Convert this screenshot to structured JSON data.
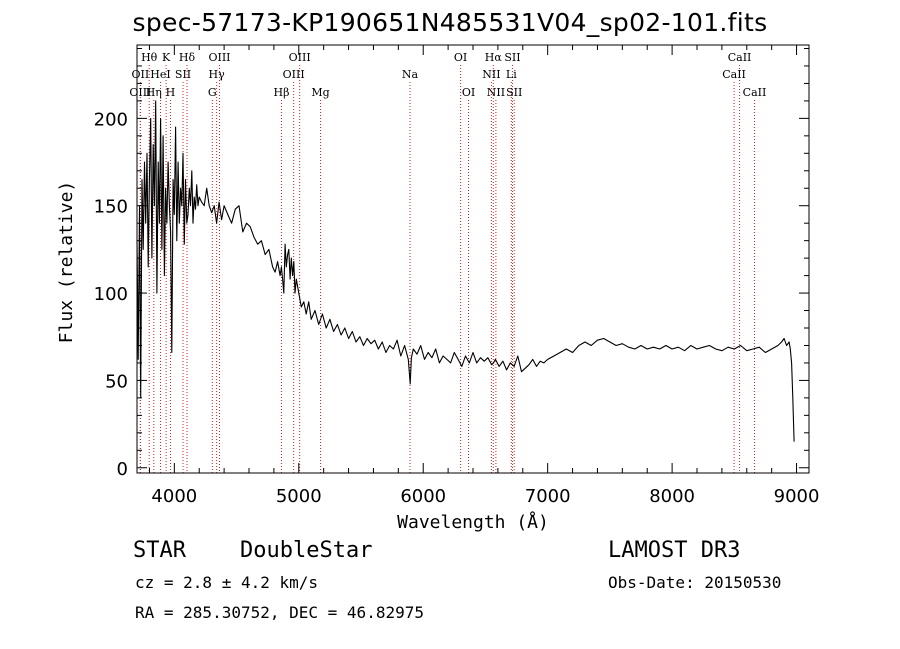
{
  "chart_data": {
    "type": "line",
    "title": "spec-57173-KP190651N485531V04_sp02-101.fits",
    "xlabel": "Wavelength (Å)",
    "ylabel": "Flux (relative)",
    "xlim": [
      3700,
      9100
    ],
    "ylim": [
      -3,
      242
    ],
    "xticks": [
      4000,
      5000,
      6000,
      7000,
      8000,
      9000
    ],
    "yticks": [
      0,
      50,
      100,
      150,
      200
    ],
    "series": [
      {
        "name": "spectrum",
        "x": [
          3700,
          3710,
          3720,
          3730,
          3740,
          3750,
          3760,
          3770,
          3780,
          3790,
          3800,
          3810,
          3820,
          3830,
          3840,
          3850,
          3860,
          3870,
          3880,
          3890,
          3900,
          3910,
          3920,
          3930,
          3940,
          3950,
          3960,
          3970,
          3980,
          3990,
          4000,
          4010,
          4020,
          4030,
          4040,
          4050,
          4060,
          4070,
          4080,
          4090,
          4100,
          4110,
          4120,
          4130,
          4140,
          4150,
          4160,
          4170,
          4180,
          4190,
          4200,
          4220,
          4240,
          4260,
          4280,
          4300,
          4320,
          4340,
          4360,
          4380,
          4400,
          4430,
          4460,
          4490,
          4520,
          4550,
          4580,
          4610,
          4640,
          4670,
          4700,
          4730,
          4760,
          4790,
          4810,
          4830,
          4850,
          4860,
          4870,
          4880,
          4890,
          4900,
          4910,
          4920,
          4930,
          4940,
          4950,
          4960,
          4970,
          4980,
          5000,
          5020,
          5040,
          5060,
          5080,
          5100,
          5130,
          5160,
          5190,
          5220,
          5250,
          5280,
          5310,
          5340,
          5370,
          5400,
          5430,
          5460,
          5490,
          5520,
          5550,
          5580,
          5610,
          5640,
          5670,
          5700,
          5730,
          5760,
          5790,
          5820,
          5850,
          5880,
          5895,
          5905,
          5920,
          5950,
          5980,
          6010,
          6040,
          6070,
          6100,
          6130,
          6160,
          6190,
          6220,
          6250,
          6280,
          6310,
          6340,
          6370,
          6400,
          6430,
          6460,
          6490,
          6520,
          6550,
          6565,
          6580,
          6610,
          6640,
          6670,
          6700,
          6730,
          6760,
          6790,
          6820,
          6850,
          6880,
          6910,
          6940,
          6970,
          7000,
          7050,
          7100,
          7150,
          7200,
          7250,
          7300,
          7350,
          7400,
          7450,
          7500,
          7550,
          7600,
          7650,
          7700,
          7750,
          7800,
          7850,
          7900,
          7950,
          8000,
          8050,
          8100,
          8150,
          8200,
          8250,
          8300,
          8350,
          8400,
          8450,
          8500,
          8550,
          8600,
          8650,
          8700,
          8750,
          8800,
          8850,
          8880,
          8900,
          8920,
          8940,
          8950,
          8960,
          8970,
          8980
        ],
        "values": [
          130,
          62,
          150,
          40,
          165,
          125,
          175,
          140,
          180,
          115,
          165,
          200,
          120,
          185,
          150,
          210,
          100,
          175,
          140,
          200,
          125,
          190,
          110,
          160,
          140,
          175,
          150,
          135,
          66,
          165,
          145,
          195,
          130,
          175,
          140,
          160,
          150,
          180,
          128,
          165,
          140,
          145,
          160,
          150,
          170,
          140,
          155,
          148,
          162,
          150,
          155,
          152,
          150,
          160,
          150,
          146,
          150,
          140,
          152,
          142,
          150,
          145,
          140,
          148,
          150,
          135,
          140,
          138,
          132,
          128,
          130,
          122,
          125,
          115,
          112,
          118,
          110,
          115,
          108,
          100,
          128,
          115,
          122,
          125,
          108,
          120,
          110,
          118,
          100,
          108,
          100,
          92,
          95,
          88,
          95,
          85,
          90,
          82,
          88,
          80,
          85,
          78,
          82,
          76,
          80,
          74,
          78,
          72,
          75,
          70,
          74,
          71,
          73,
          68,
          72,
          66,
          70,
          68,
          73,
          64,
          70,
          62,
          48,
          63,
          68,
          65,
          70,
          62,
          66,
          63,
          68,
          60,
          64,
          62,
          60,
          66,
          62,
          58,
          64,
          60,
          66,
          60,
          63,
          61,
          63,
          59,
          60,
          62,
          58,
          61,
          56,
          60,
          58,
          64,
          55,
          57,
          59,
          62,
          58,
          61,
          60,
          62,
          64,
          66,
          68,
          66,
          70,
          72,
          70,
          73,
          74,
          72,
          70,
          71,
          69,
          68,
          70,
          68,
          69,
          68,
          70,
          68,
          69,
          67,
          70,
          68,
          69,
          70,
          68,
          67,
          69,
          68,
          70,
          67,
          68,
          69,
          66,
          68,
          70,
          72,
          74,
          70,
          72,
          68,
          60,
          40,
          15
        ]
      }
    ],
    "lines": [
      {
        "label": "Hθ",
        "x": 3798,
        "row": 1
      },
      {
        "label": "OII",
        "x": 3727,
        "row": 2
      },
      {
        "label": "OIII",
        "x": 3727,
        "row": 3
      },
      {
        "label": "K",
        "x": 3934,
        "row": 1
      },
      {
        "label": "HeI",
        "x": 3889,
        "row": 2
      },
      {
        "label": "Hη",
        "x": 3835,
        "row": 3
      },
      {
        "label": "Hδ",
        "x": 4102,
        "row": 1
      },
      {
        "label": "SII",
        "x": 4070,
        "row": 2
      },
      {
        "label": "H",
        "x": 3969,
        "row": 3
      },
      {
        "label": "OIII",
        "x": 4363,
        "row": 1
      },
      {
        "label": "Hγ",
        "x": 4340,
        "row": 2
      },
      {
        "label": "G",
        "x": 4305,
        "row": 3
      },
      {
        "label": "Hβ",
        "x": 4861,
        "row": 3
      },
      {
        "label": "OIII",
        "x": 5007,
        "row": 1
      },
      {
        "label": "OIII",
        "x": 4959,
        "row": 2
      },
      {
        "label": "Mg",
        "x": 5175,
        "row": 3
      },
      {
        "label": "Na",
        "x": 5894,
        "row": 2
      },
      {
        "label": "OI",
        "x": 6300,
        "row": 1
      },
      {
        "label": "OI",
        "x": 6364,
        "row": 3
      },
      {
        "label": "Hα",
        "x": 6563,
        "row": 1
      },
      {
        "label": "SII",
        "x": 6717,
        "row": 1
      },
      {
        "label": "NII",
        "x": 6548,
        "row": 2
      },
      {
        "label": "Li",
        "x": 6708,
        "row": 2
      },
      {
        "label": "NII",
        "x": 6584,
        "row": 3
      },
      {
        "label": "SII",
        "x": 6731,
        "row": 3
      },
      {
        "label": "CaII",
        "x": 8542,
        "row": 1
      },
      {
        "label": "CaII",
        "x": 8498,
        "row": 2
      },
      {
        "label": "CaII",
        "x": 8662,
        "row": 3
      }
    ]
  },
  "info": {
    "class_label": "STAR",
    "subclass_label": "DoubleStar",
    "survey": "LAMOST DR3",
    "cz": "cz = 2.8 ± 4.2 km/s",
    "obs_date": "Obs-Date: 20150530",
    "radec": "RA = 285.30752, DEC =  46.82975"
  }
}
